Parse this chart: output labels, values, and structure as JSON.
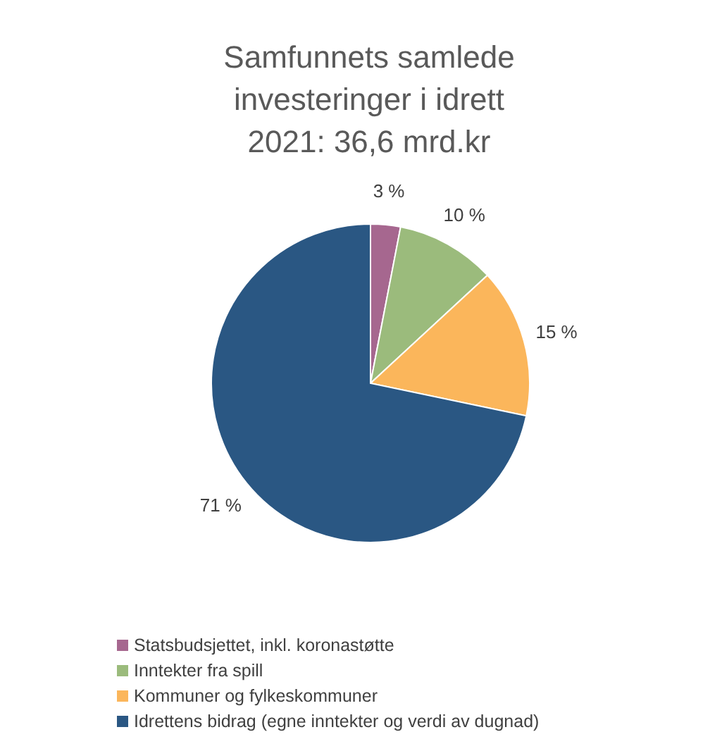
{
  "chart_data": {
    "type": "pie",
    "title": "Samfunnets samlede\ninvesteringer i idrett\n2021: 36,6 mrd.kr",
    "categories": [
      "Statsbudsjettet, inkl. koronastøtte",
      "Inntekter fra spill",
      "Kommuner og fylkeskommuner",
      "Idrettens bidrag (egne inntekter og verdi av dugnad)"
    ],
    "values": [
      3,
      10,
      15,
      71
    ],
    "colors": [
      "#a6678f",
      "#9bbb7c",
      "#fbb65b",
      "#2a5783"
    ],
    "value_labels": [
      "3 %",
      "10 %",
      "15 %",
      "71 %"
    ],
    "legend": "bottom"
  }
}
